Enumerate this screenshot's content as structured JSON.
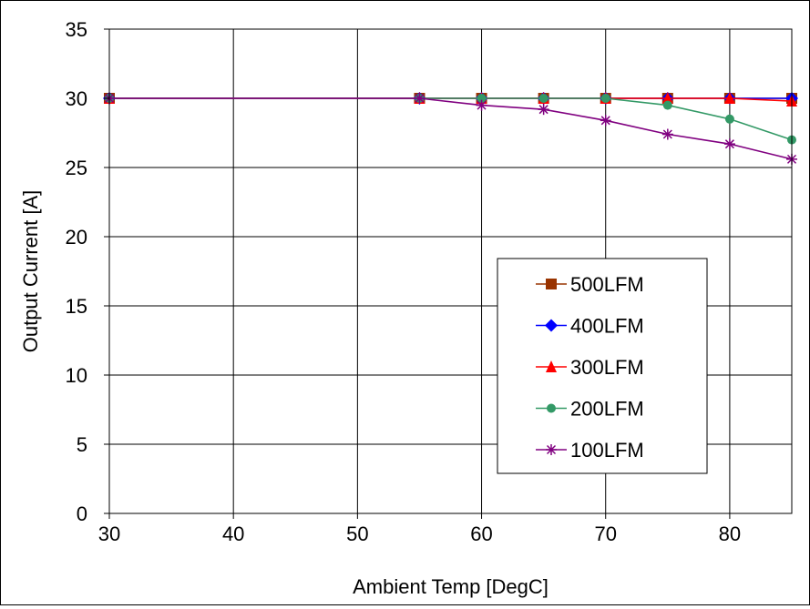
{
  "chart_data": {
    "type": "line",
    "title": "",
    "xlabel": "Ambient Temp [DegC]",
    "ylabel": "Output Current [A]",
    "xlim": [
      30,
      85
    ],
    "ylim": [
      0,
      35
    ],
    "xticks": [
      30,
      40,
      50,
      60,
      70,
      80
    ],
    "yticks": [
      0,
      5,
      10,
      15,
      20,
      25,
      30,
      35
    ],
    "grid": true,
    "legend_position": "bottom-right",
    "series": [
      {
        "name": "500LFM",
        "color": "#993300",
        "marker": "square",
        "x": [
          30,
          55,
          60,
          65,
          70,
          75,
          80,
          85
        ],
        "y": [
          30,
          30,
          30,
          30,
          30,
          30,
          30,
          30
        ]
      },
      {
        "name": "400LFM",
        "color": "#0000ff",
        "marker": "diamond",
        "x": [
          30,
          55,
          60,
          65,
          70,
          75,
          80,
          85
        ],
        "y": [
          30,
          30,
          30,
          30,
          30,
          30,
          30,
          30
        ]
      },
      {
        "name": "300LFM",
        "color": "#ff0000",
        "marker": "triangle",
        "x": [
          30,
          55,
          60,
          65,
          70,
          75,
          80,
          85
        ],
        "y": [
          30,
          30,
          30,
          30,
          30,
          30,
          30,
          29.8
        ]
      },
      {
        "name": "200LFM",
        "color": "#339966",
        "marker": "circle",
        "x": [
          30,
          55,
          60,
          65,
          70,
          75,
          80,
          85
        ],
        "y": [
          30,
          30,
          30,
          30,
          30,
          29.5,
          28.5,
          27
        ]
      },
      {
        "name": "100LFM",
        "color": "#800080",
        "marker": "asterisk",
        "x": [
          30,
          55,
          60,
          65,
          70,
          75,
          80,
          85
        ],
        "y": [
          30,
          30,
          29.5,
          29.2,
          28.4,
          27.4,
          26.7,
          25.6
        ]
      }
    ]
  }
}
